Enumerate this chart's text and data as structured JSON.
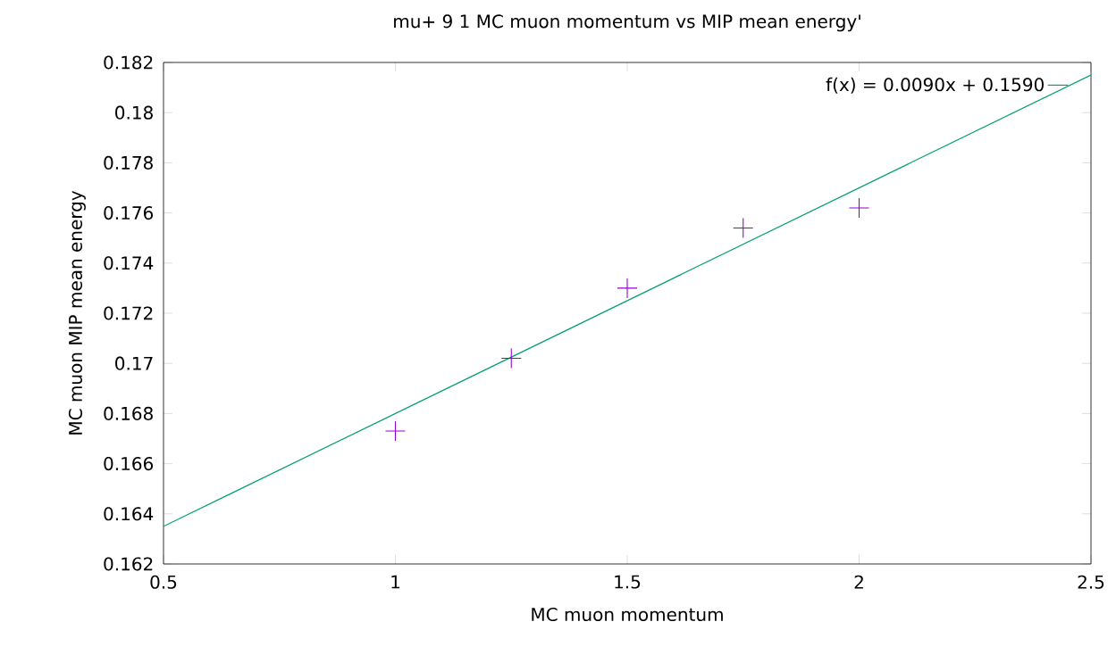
{
  "chart_data": {
    "type": "scatter",
    "title": "mu+ 9 1 MC muon momentum vs MIP mean energy'",
    "xlabel": "MC muon momentum",
    "ylabel": "MC muon MIP mean energy",
    "series": [
      {
        "x": [
          1,
          1.25,
          1.5,
          1.75,
          2
        ],
        "values": [
          0.1673,
          0.1702,
          0.173,
          0.1754,
          0.1762
        ],
        "color": "#9400d3",
        "marker": "cross"
      },
      {
        "type": "line",
        "name": "f(x) = 0.0090x + 0.1590",
        "x": [
          0.5,
          2.5
        ],
        "values": [
          0.1635,
          0.1815
        ],
        "color": "#009e73",
        "line_style": "solid"
      }
    ],
    "xlim": [
      0.5,
      2.5
    ],
    "ylim": [
      0.162,
      0.182
    ],
    "xticks": [
      0.5,
      1,
      1.5,
      2,
      2.5
    ],
    "yticks": [
      0.162,
      0.164,
      0.166,
      0.168,
      0.17,
      0.172,
      0.174,
      0.176,
      0.178,
      0.18,
      0.182
    ],
    "grid": false,
    "legend": "top right"
  }
}
